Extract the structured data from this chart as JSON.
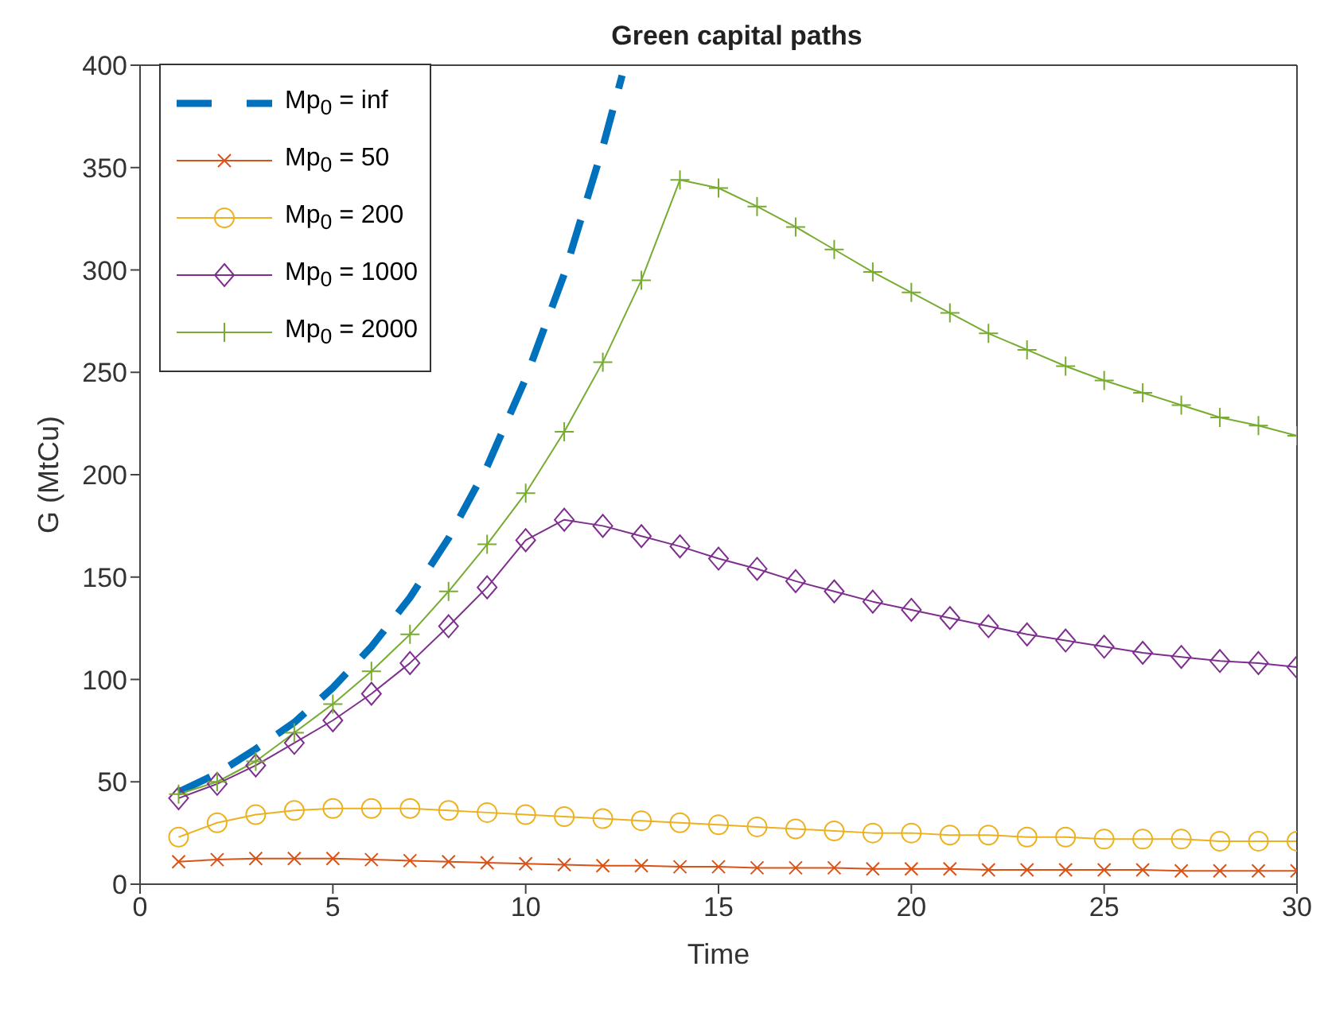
{
  "chart_data": {
    "type": "line",
    "title": "Green capital paths",
    "xlabel": "Time",
    "ylabel": "G (MtCu)",
    "x": [
      1,
      2,
      3,
      4,
      5,
      6,
      7,
      8,
      9,
      10,
      11,
      12,
      13,
      14,
      15,
      16,
      17,
      18,
      19,
      20,
      21,
      22,
      23,
      24,
      25,
      26,
      27,
      28,
      29,
      30
    ],
    "xlim": [
      0,
      30
    ],
    "xticks": [
      0,
      5,
      10,
      15,
      20,
      25,
      30
    ],
    "ylim": [
      0,
      400
    ],
    "yticks": [
      0,
      50,
      100,
      150,
      200,
      250,
      300,
      350,
      400
    ],
    "legend": "top left",
    "series": [
      {
        "name": "Mp$_{0}$ = inf",
        "color": "#0072bd",
        "line_style": "dashed",
        "marker": "none",
        "x": [
          1,
          2,
          3,
          4,
          5,
          6,
          7,
          8,
          9,
          10,
          11,
          12,
          12.5
        ],
        "values": [
          45,
          54,
          66,
          79,
          96,
          116,
          140,
          169,
          204,
          247,
          298,
          360,
          395
        ]
      },
      {
        "name": "Mp$_{0}$ = 50",
        "color": "#d95319",
        "line_style": "solid",
        "marker": "cross",
        "values": [
          11,
          12,
          12.5,
          12.5,
          12.5,
          12,
          11.5,
          11,
          10.5,
          10,
          9.5,
          9,
          9,
          8.5,
          8.5,
          8,
          8,
          8,
          7.5,
          7.5,
          7.5,
          7,
          7,
          7,
          7,
          7,
          6.5,
          6.5,
          6.5,
          6.5
        ]
      },
      {
        "name": "Mp$_{0}$ = 200",
        "color": "#edb120",
        "line_style": "solid",
        "marker": "circle",
        "values": [
          23,
          30,
          34,
          36,
          37,
          37,
          37,
          36,
          35,
          34,
          33,
          32,
          31,
          30,
          29,
          28,
          27,
          26,
          25,
          25,
          24,
          24,
          23,
          23,
          22,
          22,
          22,
          21,
          21,
          21
        ]
      },
      {
        "name": "Mp$_{0}$ = 1000",
        "color": "#7e2f8e",
        "line_style": "solid",
        "marker": "diamond",
        "values": [
          42,
          49,
          58,
          69,
          80,
          93,
          108,
          126,
          145,
          168,
          178,
          175,
          170,
          165,
          159,
          154,
          148,
          143,
          138,
          134,
          130,
          126,
          122,
          119,
          116,
          113,
          111,
          109,
          108,
          106
        ]
      },
      {
        "name": "Mp$_{0}$ = 2000",
        "color": "#77ac30",
        "line_style": "solid",
        "marker": "plus",
        "values": [
          44,
          50,
          60,
          74,
          88,
          104,
          122,
          143,
          166,
          191,
          221,
          255,
          295,
          344,
          340,
          331,
          321,
          310,
          299,
          289,
          279,
          269,
          261,
          253,
          246,
          240,
          234,
          228,
          224,
          219
        ]
      }
    ]
  }
}
